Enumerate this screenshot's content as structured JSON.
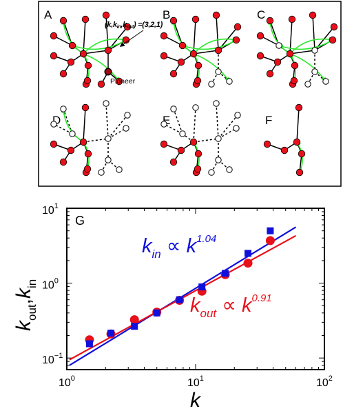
{
  "panels": {
    "labels": [
      "A",
      "B",
      "C",
      "D",
      "E",
      "F",
      "G"
    ],
    "degree_annotation": {
      "lhs_open": "(",
      "k": "k",
      "sep1": ",",
      "k_in": "k",
      "in_sub": "in",
      "sep2": ",",
      "k_out": "k",
      "out_sub": "out",
      "rhs": ") =(3,2,1)"
    },
    "pioneer_label": "Pioneer"
  },
  "colors": {
    "node_active": "#e8101a",
    "node_removed": "#ffffff",
    "edge": "#000000",
    "arrow": "#2ee82e",
    "fit_in": "#1010dd",
    "fit_out": "#e8101a"
  },
  "chart_data": {
    "type": "scatter",
    "scale": "log-log",
    "xlabel": "k",
    "ylabel_main": "k",
    "ylabel_sub1": "out",
    "ylabel_sep": ",",
    "ylabel_sub2": "in",
    "xlim": [
      1,
      100
    ],
    "ylim": [
      0.07,
      10
    ],
    "x_ticks": [
      {
        "value": 1,
        "base": "10",
        "exp": "0"
      },
      {
        "value": 10,
        "base": "10",
        "exp": "1"
      },
      {
        "value": 100,
        "base": "10",
        "exp": "2"
      }
    ],
    "y_ticks": [
      {
        "value": 0.1,
        "base": "10",
        "exp": "−1"
      },
      {
        "value": 1,
        "base": "10",
        "exp": "0"
      },
      {
        "value": 10,
        "base": "10",
        "exp": "1"
      }
    ],
    "series": [
      {
        "key": "in",
        "marker": "square",
        "color": "#1010dd",
        "x": [
          1.5,
          2.2,
          3.35,
          5.0,
          7.5,
          11.2,
          17,
          25.5,
          38
        ],
        "y": [
          0.155,
          0.215,
          0.265,
          0.4,
          0.6,
          0.89,
          1.35,
          2.5,
          5.0
        ]
      },
      {
        "key": "out",
        "marker": "circle",
        "color": "#e8101a",
        "x": [
          1.5,
          2.2,
          3.35,
          5.0,
          7.5,
          11.2,
          17,
          25.5,
          38
        ],
        "y": [
          0.175,
          0.21,
          0.325,
          0.41,
          0.59,
          0.78,
          1.3,
          1.85,
          3.7
        ]
      }
    ],
    "fits": [
      {
        "key": "in",
        "color": "#1010dd",
        "x0": 1.05,
        "x1": 60,
        "y0": 0.08,
        "y1": 5.6
      },
      {
        "key": "out",
        "color": "#e8101a",
        "x0": 1.05,
        "x1": 60,
        "y0": 0.095,
        "y1": 4.3
      }
    ],
    "equations": [
      {
        "key": "in",
        "var": "k",
        "sub": "in",
        "rel": " ∝ ",
        "base": "k",
        "exp": "1.04"
      },
      {
        "key": "out",
        "var": "k",
        "sub": "out",
        "rel": " ∝ ",
        "base": "k",
        "exp": "0.91"
      }
    ]
  }
}
